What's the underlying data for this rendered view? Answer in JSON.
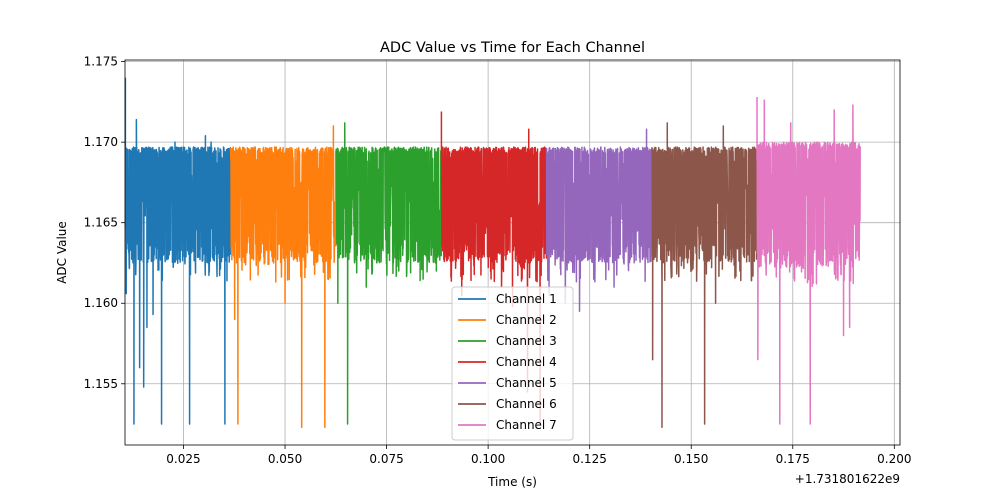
{
  "chart_data": {
    "type": "line",
    "title": "ADC Value vs Time for Each Channel",
    "xlabel": "Time (s)",
    "ylabel": "ADC Value",
    "x_offset_label": "+1.731801622e9",
    "xlim": [
      0.0106,
      0.2014
    ],
    "ylim": [
      1.1512,
      1.1751
    ],
    "x_ticks": [
      0.025,
      0.05,
      0.075,
      0.1,
      0.125,
      0.15,
      0.175,
      0.2
    ],
    "x_tick_labels": [
      "0.025",
      "0.050",
      "0.075",
      "0.100",
      "0.125",
      "0.150",
      "0.175",
      "0.200"
    ],
    "y_ticks": [
      1.155,
      1.16,
      1.165,
      1.17,
      1.175
    ],
    "y_tick_labels": [
      "1.155",
      "1.160",
      "1.165",
      "1.170",
      "1.175"
    ],
    "grid": true,
    "legend_position": "lower-center",
    "series": [
      {
        "name": "Channel 1",
        "color": "#1f77b4",
        "x_range": [
          0.0107,
          0.0366
        ],
        "band": [
          1.1625,
          1.1697
        ],
        "spikes": [
          {
            "x": 0.0107,
            "y": 1.174
          },
          {
            "x": 0.0109,
            "y": 1.1606
          },
          {
            "x": 0.0128,
            "y": 1.1525
          },
          {
            "x": 0.0134,
            "y": 1.1714
          },
          {
            "x": 0.0142,
            "y": 1.156
          },
          {
            "x": 0.0152,
            "y": 1.1548
          },
          {
            "x": 0.016,
            "y": 1.1585
          },
          {
            "x": 0.0175,
            "y": 1.1593
          },
          {
            "x": 0.0196,
            "y": 1.1525
          },
          {
            "x": 0.0229,
            "y": 1.17
          },
          {
            "x": 0.0265,
            "y": 1.1525
          },
          {
            "x": 0.0304,
            "y": 1.1704
          },
          {
            "x": 0.0352,
            "y": 1.1525
          },
          {
            "x": 0.0318,
            "y": 1.17
          }
        ]
      },
      {
        "name": "Channel 2",
        "color": "#ff7f0e",
        "x_range": [
          0.0366,
          0.0626
        ],
        "band": [
          1.1625,
          1.1697
        ],
        "spikes": [
          {
            "x": 0.0376,
            "y": 1.159
          },
          {
            "x": 0.0384,
            "y": 1.1525
          },
          {
            "x": 0.0433,
            "y": 1.163
          },
          {
            "x": 0.0472,
            "y": 1.1625
          },
          {
            "x": 0.0541,
            "y": 1.1523
          },
          {
            "x": 0.0598,
            "y": 1.1523
          },
          {
            "x": 0.0619,
            "y": 1.171
          },
          {
            "x": 0.05,
            "y": 1.16
          }
        ]
      },
      {
        "name": "Channel 3",
        "color": "#2ca02c",
        "x_range": [
          0.0626,
          0.0885
        ],
        "band": [
          1.1625,
          1.1697
        ],
        "spikes": [
          {
            "x": 0.0654,
            "y": 1.1525
          },
          {
            "x": 0.0647,
            "y": 1.1712
          },
          {
            "x": 0.063,
            "y": 1.16
          },
          {
            "x": 0.07,
            "y": 1.161
          },
          {
            "x": 0.078,
            "y": 1.162
          },
          {
            "x": 0.084,
            "y": 1.1615
          }
        ]
      },
      {
        "name": "Channel 4",
        "color": "#d62728",
        "x_range": [
          0.0885,
          0.1144
        ],
        "band": [
          1.1625,
          1.1697
        ],
        "spikes": [
          {
            "x": 0.0885,
            "y": 1.1719
          },
          {
            "x": 0.0935,
            "y": 1.1605
          },
          {
            "x": 0.1033,
            "y": 1.161
          },
          {
            "x": 0.1097,
            "y": 1.1545
          },
          {
            "x": 0.1128,
            "y": 1.1525
          },
          {
            "x": 0.11,
            "y": 1.1708
          },
          {
            "x": 0.106,
            "y": 1.1598
          }
        ]
      },
      {
        "name": "Channel 5",
        "color": "#9467bd",
        "x_range": [
          0.1144,
          0.1403
        ],
        "band": [
          1.1625,
          1.1697
        ],
        "spikes": [
          {
            "x": 0.115,
            "y": 1.1605
          },
          {
            "x": 0.119,
            "y": 1.16
          },
          {
            "x": 0.1225,
            "y": 1.1595
          },
          {
            "x": 0.126,
            "y": 1.1615
          },
          {
            "x": 0.131,
            "y": 1.161
          },
          {
            "x": 0.139,
            "y": 1.1708
          }
        ]
      },
      {
        "name": "Channel 6",
        "color": "#8c564b",
        "x_range": [
          0.1403,
          0.1662
        ],
        "band": [
          1.1625,
          1.1697
        ],
        "spikes": [
          {
            "x": 0.1405,
            "y": 1.1565
          },
          {
            "x": 0.1428,
            "y": 1.1523
          },
          {
            "x": 0.1441,
            "y": 1.1712
          },
          {
            "x": 0.1533,
            "y": 1.1525
          },
          {
            "x": 0.156,
            "y": 1.16
          },
          {
            "x": 0.1579,
            "y": 1.171
          },
          {
            "x": 0.162,
            "y": 1.162
          }
        ]
      },
      {
        "name": "Channel 7",
        "color": "#e377c2",
        "x_range": [
          0.1662,
          0.1916
        ],
        "band": [
          1.1622,
          1.17
        ],
        "spikes": [
          {
            "x": 0.1662,
            "y": 1.1728
          },
          {
            "x": 0.1664,
            "y": 1.1565
          },
          {
            "x": 0.168,
            "y": 1.1726
          },
          {
            "x": 0.1718,
            "y": 1.1525
          },
          {
            "x": 0.1745,
            "y": 1.1712
          },
          {
            "x": 0.1793,
            "y": 1.1525
          },
          {
            "x": 0.1852,
            "y": 1.172
          },
          {
            "x": 0.1875,
            "y": 1.158
          },
          {
            "x": 0.1898,
            "y": 1.1723
          },
          {
            "x": 0.189,
            "y": 1.1585
          }
        ]
      }
    ]
  }
}
